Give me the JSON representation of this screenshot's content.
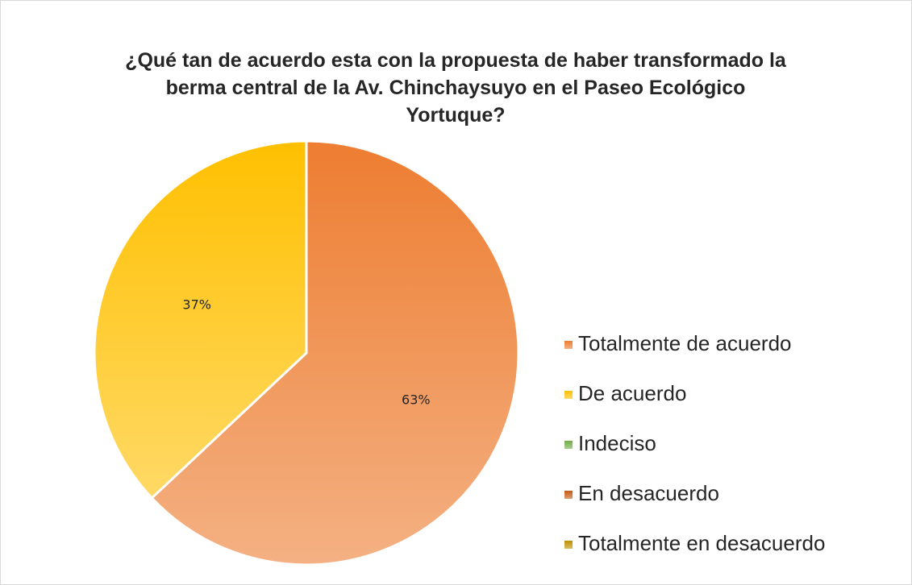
{
  "chart_data": {
    "type": "pie",
    "title": "¿Qué tan de acuerdo esta con la propuesta de haber transformado la berma central de la Av. Chinchaysuyo en el Paseo Ecológico Yortuque?",
    "categories": [
      "Totalmente de acuerdo",
      "De acuerdo",
      "Indeciso",
      "En desacuerdo",
      "Totalmente en desacuerdo"
    ],
    "values": [
      63,
      37,
      0,
      0,
      0
    ],
    "value_labels": [
      "63%",
      "37%",
      null,
      null,
      null
    ],
    "colors": [
      "#ED7D31",
      "#FFC000",
      "#70AD47",
      "#C55A11",
      "#BF8F00"
    ],
    "legend": "right"
  }
}
